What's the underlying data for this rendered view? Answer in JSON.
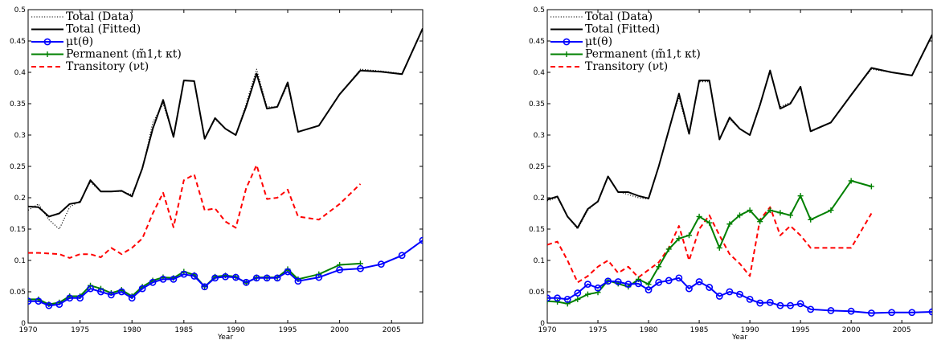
{
  "charts": [
    {
      "type": "line",
      "xlabel": "Year",
      "xlim": [
        1970,
        2008
      ],
      "ylim": [
        0,
        0.5
      ],
      "xticks": [
        "1970",
        "1975",
        "1980",
        "1985",
        "1990",
        "1995",
        "2000",
        "2005"
      ],
      "yticks": [
        "0",
        "0.05",
        "0.1",
        "0.15",
        "0.2",
        "0.25",
        "0.3",
        "0.35",
        "0.4",
        "0.45",
        "0.5"
      ],
      "legend": [
        "Total (Data)",
        "Total (Fitted)",
        "μt(θ)",
        "Permanent (m̃1,t κt)",
        "Transitory (νt)"
      ],
      "series": [
        {
          "name": "Total (Data)",
          "color": "#000000",
          "style": "dotted",
          "marker": "none",
          "x": [
            1970,
            1971,
            1972,
            1973,
            1974,
            1975,
            1976,
            1977,
            1978,
            1979,
            1980,
            1981,
            1982,
            1983,
            1984,
            1985,
            1986,
            1987,
            1988,
            1989,
            1990,
            1991,
            1992,
            1993,
            1994,
            1995,
            1996,
            1998,
            2000,
            2002,
            2004,
            2006,
            2008
          ],
          "y": [
            0.18,
            0.19,
            0.165,
            0.15,
            0.185,
            0.195,
            0.225,
            0.21,
            0.21,
            0.21,
            0.205,
            0.245,
            0.32,
            0.35,
            0.297,
            0.388,
            0.385,
            0.295,
            0.325,
            0.31,
            0.3,
            0.35,
            0.405,
            0.345,
            0.345,
            0.38,
            0.305,
            0.315,
            0.365,
            0.405,
            0.402,
            0.398,
            0.47
          ]
        },
        {
          "name": "Total (Fitted)",
          "color": "#000000",
          "style": "solid",
          "marker": "none",
          "x": [
            1970,
            1971,
            1972,
            1973,
            1974,
            1975,
            1976,
            1977,
            1978,
            1979,
            1980,
            1981,
            1982,
            1983,
            1984,
            1985,
            1986,
            1987,
            1988,
            1989,
            1990,
            1991,
            1992,
            1993,
            1994,
            1995,
            1996,
            1998,
            2000,
            2002,
            2004,
            2006,
            2008
          ],
          "y": [
            0.186,
            0.185,
            0.17,
            0.175,
            0.19,
            0.193,
            0.228,
            0.21,
            0.21,
            0.211,
            0.202,
            0.247,
            0.31,
            0.356,
            0.297,
            0.387,
            0.386,
            0.294,
            0.327,
            0.31,
            0.3,
            0.345,
            0.398,
            0.342,
            0.345,
            0.384,
            0.305,
            0.315,
            0.365,
            0.403,
            0.401,
            0.397,
            0.47
          ]
        },
        {
          "name": "μt(θ)",
          "color": "#0000ff",
          "style": "solid",
          "marker": "circle",
          "x": [
            1970,
            1971,
            1972,
            1973,
            1974,
            1975,
            1976,
            1977,
            1978,
            1979,
            1980,
            1981,
            1982,
            1983,
            1984,
            1985,
            1986,
            1987,
            1988,
            1989,
            1990,
            1991,
            1992,
            1993,
            1994,
            1995,
            1996,
            1998,
            2000,
            2002,
            2004,
            2006,
            2008
          ],
          "y": [
            0.035,
            0.035,
            0.028,
            0.03,
            0.04,
            0.04,
            0.055,
            0.05,
            0.045,
            0.05,
            0.04,
            0.055,
            0.065,
            0.07,
            0.07,
            0.078,
            0.075,
            0.058,
            0.072,
            0.074,
            0.073,
            0.065,
            0.072,
            0.072,
            0.072,
            0.082,
            0.067,
            0.073,
            0.085,
            0.087,
            0.094,
            0.108,
            0.132
          ]
        },
        {
          "name": "Permanent (m̃1,t κt)",
          "color": "#008000",
          "style": "solid",
          "marker": "plus",
          "x": [
            1970,
            1971,
            1972,
            1973,
            1974,
            1975,
            1976,
            1977,
            1978,
            1979,
            1980,
            1981,
            1982,
            1983,
            1984,
            1985,
            1986,
            1987,
            1988,
            1989,
            1990,
            1991,
            1992,
            1993,
            1994,
            1995,
            1996,
            1998,
            2000,
            2002
          ],
          "y": [
            0.038,
            0.038,
            0.03,
            0.033,
            0.043,
            0.043,
            0.06,
            0.055,
            0.048,
            0.053,
            0.043,
            0.058,
            0.068,
            0.073,
            0.072,
            0.082,
            0.077,
            0.058,
            0.074,
            0.076,
            0.074,
            0.064,
            0.073,
            0.073,
            0.073,
            0.086,
            0.07,
            0.078,
            0.093,
            0.095
          ]
        },
        {
          "name": "Transitory (νt)",
          "color": "#ff0000",
          "style": "dashed",
          "marker": "none",
          "x": [
            1970,
            1971,
            1972,
            1973,
            1974,
            1975,
            1976,
            1977,
            1978,
            1979,
            1980,
            1981,
            1982,
            1983,
            1984,
            1985,
            1986,
            1987,
            1988,
            1989,
            1990,
            1991,
            1992,
            1993,
            1994,
            1995,
            1996,
            1998,
            2000,
            2002
          ],
          "y": [
            0.112,
            0.112,
            0.111,
            0.11,
            0.104,
            0.11,
            0.11,
            0.105,
            0.12,
            0.11,
            0.12,
            0.135,
            0.175,
            0.208,
            0.153,
            0.228,
            0.237,
            0.18,
            0.183,
            0.162,
            0.152,
            0.215,
            0.252,
            0.198,
            0.2,
            0.213,
            0.17,
            0.165,
            0.19,
            0.222
          ]
        }
      ]
    },
    {
      "type": "line",
      "xlabel": "Year",
      "xlim": [
        1970,
        2008
      ],
      "ylim": [
        0,
        0.5
      ],
      "xticks": [
        "1970",
        "1975",
        "1980",
        "1985",
        "1990",
        "1995",
        "2000",
        "2005"
      ],
      "yticks": [
        "0",
        "0.05",
        "0.1",
        "0.15",
        "0.2",
        "0.25",
        "0.3",
        "0.35",
        "0.4",
        "0.45",
        "0.5"
      ],
      "legend": [
        "Total (Data)",
        "Total (Fitted)",
        "μt(θ)",
        "Permanent (m̃1,t κt)",
        "Transitory (νt)"
      ],
      "series": [
        {
          "name": "Total (Data)",
          "color": "#000000",
          "style": "dotted",
          "marker": "none",
          "x": [
            1970,
            1971,
            1972,
            1973,
            1974,
            1975,
            1976,
            1977,
            1978,
            1979,
            1980,
            1981,
            1982,
            1983,
            1984,
            1985,
            1986,
            1987,
            1988,
            1989,
            1990,
            1991,
            1992,
            1993,
            1994,
            1995,
            1996,
            1998,
            2000,
            2002,
            2004,
            2006,
            2008
          ],
          "y": [
            0.195,
            0.2,
            0.17,
            0.15,
            0.18,
            0.195,
            0.235,
            0.21,
            0.205,
            0.2,
            0.198,
            0.25,
            0.31,
            0.36,
            0.3,
            0.385,
            0.385,
            0.293,
            0.325,
            0.31,
            0.3,
            0.35,
            0.4,
            0.345,
            0.352,
            0.375,
            0.305,
            0.32,
            0.365,
            0.405,
            0.4,
            0.395,
            0.46
          ]
        },
        {
          "name": "Total (Fitted)",
          "color": "#000000",
          "style": "solid",
          "marker": "none",
          "x": [
            1970,
            1971,
            1972,
            1973,
            1974,
            1975,
            1976,
            1977,
            1978,
            1979,
            1980,
            1981,
            1982,
            1983,
            1984,
            1985,
            1986,
            1987,
            1988,
            1989,
            1990,
            1991,
            1992,
            1993,
            1994,
            1995,
            1996,
            1998,
            2000,
            2002,
            2004,
            2006,
            2008
          ],
          "y": [
            0.197,
            0.202,
            0.17,
            0.152,
            0.182,
            0.194,
            0.234,
            0.209,
            0.209,
            0.203,
            0.199,
            0.25,
            0.308,
            0.366,
            0.302,
            0.387,
            0.387,
            0.293,
            0.328,
            0.31,
            0.3,
            0.348,
            0.403,
            0.342,
            0.35,
            0.377,
            0.306,
            0.32,
            0.364,
            0.407,
            0.4,
            0.395,
            0.46
          ]
        },
        {
          "name": "μt(θ)",
          "color": "#0000ff",
          "style": "solid",
          "marker": "circle",
          "x": [
            1970,
            1971,
            1972,
            1973,
            1974,
            1975,
            1976,
            1977,
            1978,
            1979,
            1980,
            1981,
            1982,
            1983,
            1984,
            1985,
            1986,
            1987,
            1988,
            1989,
            1990,
            1991,
            1992,
            1993,
            1994,
            1995,
            1996,
            1998,
            2000,
            2002,
            2004,
            2006,
            2008
          ],
          "y": [
            0.04,
            0.04,
            0.038,
            0.048,
            0.062,
            0.056,
            0.067,
            0.066,
            0.062,
            0.063,
            0.053,
            0.065,
            0.068,
            0.072,
            0.055,
            0.066,
            0.057,
            0.043,
            0.05,
            0.046,
            0.038,
            0.032,
            0.033,
            0.028,
            0.028,
            0.031,
            0.022,
            0.02,
            0.019,
            0.016,
            0.017,
            0.017,
            0.018
          ]
        },
        {
          "name": "Permanent (m̃1,t κt)",
          "color": "#008000",
          "style": "solid",
          "marker": "plus",
          "x": [
            1970,
            1971,
            1972,
            1973,
            1974,
            1975,
            1976,
            1977,
            1978,
            1979,
            1980,
            1981,
            1982,
            1983,
            1984,
            1985,
            1986,
            1987,
            1988,
            1989,
            1990,
            1991,
            1992,
            1993,
            1994,
            1995,
            1996,
            1998,
            2000,
            2002
          ],
          "y": [
            0.035,
            0.034,
            0.031,
            0.038,
            0.046,
            0.049,
            0.068,
            0.063,
            0.058,
            0.07,
            0.062,
            0.09,
            0.118,
            0.135,
            0.14,
            0.17,
            0.16,
            0.12,
            0.158,
            0.172,
            0.18,
            0.162,
            0.18,
            0.176,
            0.172,
            0.203,
            0.165,
            0.18,
            0.227,
            0.218
          ]
        },
        {
          "name": "Transitory (νt)",
          "color": "#ff0000",
          "style": "dashed",
          "marker": "none",
          "x": [
            1970,
            1971,
            1972,
            1973,
            1974,
            1975,
            1976,
            1977,
            1978,
            1979,
            1980,
            1981,
            1982,
            1983,
            1984,
            1985,
            1986,
            1987,
            1988,
            1989,
            1990,
            1991,
            1992,
            1993,
            1994,
            1995,
            1996,
            1998,
            2000,
            2002
          ],
          "y": [
            0.125,
            0.13,
            0.1,
            0.065,
            0.075,
            0.09,
            0.1,
            0.08,
            0.09,
            0.073,
            0.085,
            0.097,
            0.12,
            0.155,
            0.1,
            0.15,
            0.172,
            0.14,
            0.11,
            0.095,
            0.075,
            0.165,
            0.185,
            0.14,
            0.155,
            0.14,
            0.12,
            0.12,
            0.12,
            0.175
          ]
        }
      ]
    }
  ]
}
